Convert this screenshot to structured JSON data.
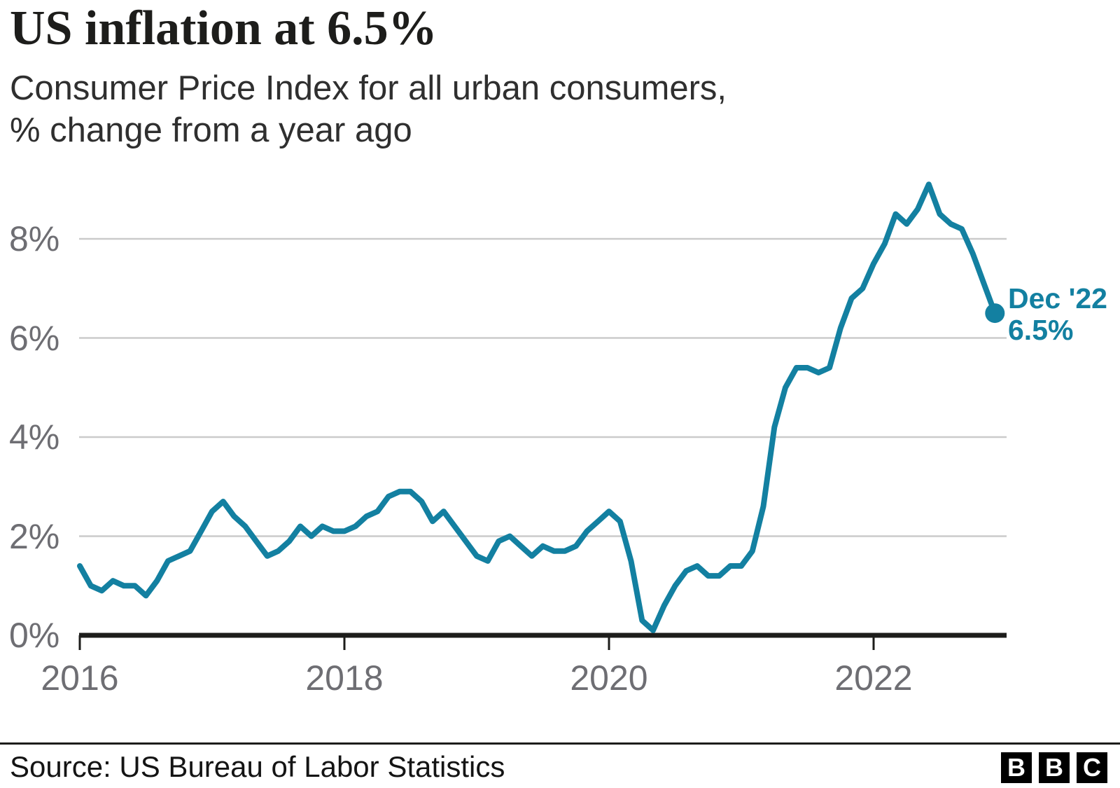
{
  "header": {
    "title": "US inflation at 6.5%",
    "subtitle_line1": "Consumer Price Index for all urban consumers,",
    "subtitle_line2": "% change from a year ago"
  },
  "chart_data": {
    "type": "line",
    "title": "US inflation at 6.5%",
    "ylabel": "% change from a year ago",
    "x_range": [
      "Jan 2016",
      "Dec 2022"
    ],
    "frequency": "monthly",
    "ylim": [
      0,
      9.5
    ],
    "grid": "horizontal",
    "y_ticks": [
      {
        "label": "0%",
        "value": 0
      },
      {
        "label": "2%",
        "value": 2
      },
      {
        "label": "4%",
        "value": 4
      },
      {
        "label": "6%",
        "value": 6
      },
      {
        "label": "8%",
        "value": 8
      }
    ],
    "x_ticks": [
      {
        "label": "2016",
        "month_index": 0
      },
      {
        "label": "2018",
        "month_index": 24
      },
      {
        "label": "2020",
        "month_index": 48
      },
      {
        "label": "2022",
        "month_index": 72
      }
    ],
    "series": [
      {
        "name": "US Consumer Price Index, % change from a year ago",
        "color": "#1380A1",
        "values": [
          1.4,
          1.0,
          0.9,
          1.1,
          1.0,
          1.0,
          0.8,
          1.1,
          1.5,
          1.6,
          1.7,
          2.1,
          2.5,
          2.7,
          2.4,
          2.2,
          1.9,
          1.6,
          1.7,
          1.9,
          2.2,
          2.0,
          2.2,
          2.1,
          2.1,
          2.2,
          2.4,
          2.5,
          2.8,
          2.9,
          2.9,
          2.7,
          2.3,
          2.5,
          2.2,
          1.9,
          1.6,
          1.5,
          1.9,
          2.0,
          1.8,
          1.6,
          1.8,
          1.7,
          1.7,
          1.8,
          2.1,
          2.3,
          2.5,
          2.3,
          1.5,
          0.3,
          0.1,
          0.6,
          1.0,
          1.3,
          1.4,
          1.2,
          1.2,
          1.4,
          1.4,
          1.7,
          2.6,
          4.2,
          5.0,
          5.4,
          5.4,
          5.3,
          5.4,
          6.2,
          6.8,
          7.0,
          7.5,
          7.9,
          8.5,
          8.3,
          8.6,
          9.1,
          8.5,
          8.3,
          8.2,
          7.7,
          7.1,
          6.5
        ]
      }
    ],
    "end_point": {
      "label_line1": "Dec '22",
      "label_line2": "6.5%",
      "month_index": 83,
      "value": 6.5
    },
    "colors": {
      "line": "#1380A1",
      "grid": "#CBCBCB",
      "axis": "#1D1D1B",
      "tick_labels": "#6E6E73"
    }
  },
  "footer": {
    "source": "Source: US Bureau of Labor Statistics",
    "logo": [
      "B",
      "B",
      "C"
    ]
  }
}
